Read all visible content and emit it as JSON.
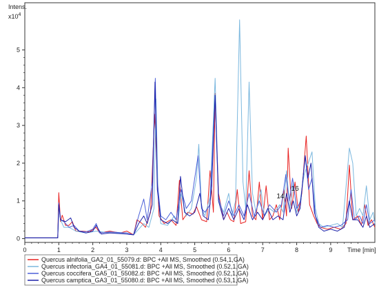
{
  "chart_data": {
    "type": "line",
    "ylabel": "Intens.",
    "y_multiplier": "x10",
    "y_multiplier_exp": "4",
    "xlabel": "Time [min]",
    "xlim": [
      0,
      10.3
    ],
    "ylim": [
      -0.1,
      6.25
    ],
    "x_ticks": [
      0,
      1,
      2,
      3,
      4,
      5,
      6,
      7,
      8,
      9
    ],
    "y_ticks": [
      0,
      1,
      2,
      3,
      4,
      5
    ],
    "grid": false,
    "legend_position": "bottom",
    "annotations": [
      {
        "text": "14",
        "x": 7.52,
        "y": 1.07
      },
      {
        "text": "16",
        "x": 7.95,
        "y": 1.27
      }
    ],
    "series": [
      {
        "name": "Quercus alnifolia_GA2_01_55079.d: BPC +All MS, Smoothed (0.54,1,GA)",
        "color": "#e8201f",
        "points": [
          [
            0,
            0.02
          ],
          [
            0.97,
            0.02
          ],
          [
            1.0,
            1.22
          ],
          [
            1.05,
            0.45
          ],
          [
            1.1,
            0.62
          ],
          [
            1.2,
            0.35
          ],
          [
            1.3,
            0.35
          ],
          [
            1.4,
            0.45
          ],
          [
            1.5,
            0.2
          ],
          [
            1.7,
            0.2
          ],
          [
            1.9,
            0.18
          ],
          [
            2.1,
            0.3
          ],
          [
            2.2,
            0.15
          ],
          [
            2.5,
            0.2
          ],
          [
            2.8,
            0.15
          ],
          [
            3.0,
            0.2
          ],
          [
            3.2,
            0.1
          ],
          [
            3.3,
            0.5
          ],
          [
            3.45,
            0.4
          ],
          [
            3.55,
            0.3
          ],
          [
            3.7,
            0.7
          ],
          [
            3.82,
            3.3
          ],
          [
            3.88,
            2.1
          ],
          [
            3.95,
            0.6
          ],
          [
            4.1,
            0.4
          ],
          [
            4.3,
            0.5
          ],
          [
            4.45,
            0.35
          ],
          [
            4.55,
            1.55
          ],
          [
            4.65,
            0.5
          ],
          [
            4.8,
            0.7
          ],
          [
            4.95,
            0.65
          ],
          [
            5.05,
            0.85
          ],
          [
            5.2,
            0.5
          ],
          [
            5.35,
            0.45
          ],
          [
            5.45,
            1.8
          ],
          [
            5.55,
            0.7
          ],
          [
            5.6,
            3.85
          ],
          [
            5.7,
            1.2
          ],
          [
            5.85,
            0.5
          ],
          [
            5.95,
            0.7
          ],
          [
            6.05,
            0.5
          ],
          [
            6.15,
            0.45
          ],
          [
            6.25,
            1.3
          ],
          [
            6.35,
            0.4
          ],
          [
            6.5,
            0.45
          ],
          [
            6.6,
            1.8
          ],
          [
            6.7,
            0.6
          ],
          [
            6.8,
            0.5
          ],
          [
            6.9,
            1.5
          ],
          [
            7.0,
            0.5
          ],
          [
            7.1,
            1.4
          ],
          [
            7.2,
            0.5
          ],
          [
            7.3,
            0.6
          ],
          [
            7.4,
            0.9
          ],
          [
            7.5,
            0.5
          ],
          [
            7.62,
            1.3
          ],
          [
            7.7,
            0.6
          ],
          [
            7.75,
            2.4
          ],
          [
            7.85,
            0.8
          ],
          [
            7.95,
            1.5
          ],
          [
            8.05,
            0.7
          ],
          [
            8.15,
            1.2
          ],
          [
            8.28,
            2.72
          ],
          [
            8.38,
            0.9
          ],
          [
            8.5,
            0.6
          ],
          [
            8.6,
            0.4
          ],
          [
            8.7,
            0.3
          ],
          [
            8.9,
            0.25
          ],
          [
            9.1,
            0.3
          ],
          [
            9.3,
            0.25
          ],
          [
            9.45,
            0.4
          ],
          [
            9.55,
            1.95
          ],
          [
            9.65,
            0.5
          ],
          [
            9.8,
            0.6
          ],
          [
            9.9,
            0.35
          ],
          [
            10.0,
            0.9
          ],
          [
            10.1,
            0.35
          ],
          [
            10.2,
            0.5
          ],
          [
            10.3,
            0.3
          ]
        ]
      },
      {
        "name": "Quercus infectoria_GA4_01_55081.d: BPC +All MS, Smoothed (0.52,1,GA)",
        "color": "#7ab7de",
        "points": [
          [
            0,
            0.02
          ],
          [
            0.97,
            0.02
          ],
          [
            1.0,
            0.85
          ],
          [
            1.05,
            0.5
          ],
          [
            1.15,
            0.3
          ],
          [
            1.3,
            0.3
          ],
          [
            1.5,
            0.2
          ],
          [
            1.8,
            0.15
          ],
          [
            2.1,
            0.2
          ],
          [
            2.5,
            0.15
          ],
          [
            3.0,
            0.15
          ],
          [
            3.2,
            0.1
          ],
          [
            3.35,
            0.25
          ],
          [
            3.5,
            0.4
          ],
          [
            3.65,
            0.3
          ],
          [
            3.8,
            0.8
          ],
          [
            3.86,
            3.7
          ],
          [
            3.92,
            1.2
          ],
          [
            4.0,
            0.4
          ],
          [
            4.2,
            0.35
          ],
          [
            4.4,
            0.6
          ],
          [
            4.5,
            0.4
          ],
          [
            4.6,
            1.2
          ],
          [
            4.75,
            0.6
          ],
          [
            4.9,
            0.8
          ],
          [
            5.05,
            1.6
          ],
          [
            5.12,
            2.5
          ],
          [
            5.2,
            0.8
          ],
          [
            5.3,
            0.6
          ],
          [
            5.45,
            1.1
          ],
          [
            5.6,
            4.25
          ],
          [
            5.7,
            1.0
          ],
          [
            5.85,
            0.7
          ],
          [
            6.0,
            1.2
          ],
          [
            6.1,
            0.6
          ],
          [
            6.2,
            1.0
          ],
          [
            6.32,
            5.8
          ],
          [
            6.42,
            1.5
          ],
          [
            6.5,
            0.8
          ],
          [
            6.6,
            4.15
          ],
          [
            6.7,
            1.2
          ],
          [
            6.8,
            0.7
          ],
          [
            6.95,
            1.3
          ],
          [
            7.05,
            0.6
          ],
          [
            7.2,
            0.8
          ],
          [
            7.35,
            0.7
          ],
          [
            7.5,
            0.9
          ],
          [
            7.6,
            0.7
          ],
          [
            7.7,
            1.8
          ],
          [
            7.8,
            0.8
          ],
          [
            7.9,
            1.5
          ],
          [
            8.0,
            0.7
          ],
          [
            8.1,
            1.0
          ],
          [
            8.22,
            1.7
          ],
          [
            8.3,
            1.9
          ],
          [
            8.45,
            2.3
          ],
          [
            8.55,
            0.8
          ],
          [
            8.65,
            0.4
          ],
          [
            8.8,
            0.3
          ],
          [
            9.0,
            0.35
          ],
          [
            9.2,
            0.4
          ],
          [
            9.35,
            0.3
          ],
          [
            9.55,
            2.4
          ],
          [
            9.65,
            2.0
          ],
          [
            9.75,
            0.6
          ],
          [
            9.85,
            0.8
          ],
          [
            9.95,
            0.6
          ],
          [
            10.05,
            1.4
          ],
          [
            10.15,
            0.5
          ],
          [
            10.25,
            0.7
          ],
          [
            10.3,
            0.4
          ]
        ]
      },
      {
        "name": "Quercus coccifera_GA5_01_55082.d: BPC +All MS, Smoothed (0.52,1,GA)",
        "color": "#4a5fd8",
        "points": [
          [
            0,
            0.02
          ],
          [
            0.97,
            0.02
          ],
          [
            1.0,
            0.95
          ],
          [
            1.05,
            0.5
          ],
          [
            1.15,
            0.45
          ],
          [
            1.3,
            0.3
          ],
          [
            1.45,
            0.35
          ],
          [
            1.6,
            0.2
          ],
          [
            1.8,
            0.18
          ],
          [
            2.0,
            0.25
          ],
          [
            2.1,
            0.4
          ],
          [
            2.2,
            0.15
          ],
          [
            2.5,
            0.18
          ],
          [
            3.0,
            0.15
          ],
          [
            3.2,
            0.1
          ],
          [
            3.35,
            0.6
          ],
          [
            3.5,
            1.05
          ],
          [
            3.6,
            0.5
          ],
          [
            3.75,
            1.5
          ],
          [
            3.84,
            4.25
          ],
          [
            3.9,
            1.5
          ],
          [
            4.0,
            0.6
          ],
          [
            4.15,
            0.5
          ],
          [
            4.3,
            0.7
          ],
          [
            4.45,
            0.5
          ],
          [
            4.6,
            1.3
          ],
          [
            4.75,
            0.8
          ],
          [
            4.9,
            1.0
          ],
          [
            5.1,
            2.2
          ],
          [
            5.2,
            0.8
          ],
          [
            5.3,
            0.7
          ],
          [
            5.45,
            0.9
          ],
          [
            5.6,
            3.8
          ],
          [
            5.7,
            1.1
          ],
          [
            5.85,
            0.6
          ],
          [
            6.0,
            1.0
          ],
          [
            6.15,
            0.6
          ],
          [
            6.3,
            0.9
          ],
          [
            6.45,
            0.6
          ],
          [
            6.6,
            1.2
          ],
          [
            6.75,
            0.6
          ],
          [
            6.9,
            1.0
          ],
          [
            7.05,
            0.6
          ],
          [
            7.2,
            0.9
          ],
          [
            7.4,
            0.7
          ],
          [
            7.55,
            0.9
          ],
          [
            7.68,
            1.7
          ],
          [
            7.78,
            1.0
          ],
          [
            7.88,
            1.6
          ],
          [
            8.0,
            0.8
          ],
          [
            8.12,
            1.0
          ],
          [
            8.25,
            2.2
          ],
          [
            8.35,
            1.3
          ],
          [
            8.45,
            1.6
          ],
          [
            8.55,
            0.6
          ],
          [
            8.7,
            0.3
          ],
          [
            8.9,
            0.35
          ],
          [
            9.1,
            0.3
          ],
          [
            9.3,
            0.35
          ],
          [
            9.5,
            0.5
          ],
          [
            9.6,
            1.3
          ],
          [
            9.7,
            0.5
          ],
          [
            9.85,
            0.6
          ],
          [
            9.95,
            0.4
          ],
          [
            10.05,
            0.9
          ],
          [
            10.15,
            0.4
          ],
          [
            10.3,
            0.5
          ]
        ]
      },
      {
        "name": "Quercus camptica_GA3_01_55080.d: BPC +All MS, Smoothed (0.53,1,GA)",
        "color": "#1a1fa8",
        "points": [
          [
            0,
            0.02
          ],
          [
            0.97,
            0.02
          ],
          [
            1.0,
            0.9
          ],
          [
            1.05,
            0.5
          ],
          [
            1.2,
            0.45
          ],
          [
            1.35,
            0.55
          ],
          [
            1.45,
            0.3
          ],
          [
            1.6,
            0.2
          ],
          [
            1.8,
            0.15
          ],
          [
            2.0,
            0.2
          ],
          [
            2.1,
            0.35
          ],
          [
            2.25,
            0.12
          ],
          [
            2.5,
            0.15
          ],
          [
            3.0,
            0.12
          ],
          [
            3.2,
            0.1
          ],
          [
            3.35,
            0.4
          ],
          [
            3.5,
            0.6
          ],
          [
            3.6,
            0.4
          ],
          [
            3.75,
            0.9
          ],
          [
            3.83,
            4.15
          ],
          [
            3.9,
            1.3
          ],
          [
            4.0,
            0.5
          ],
          [
            4.2,
            0.4
          ],
          [
            4.35,
            0.5
          ],
          [
            4.5,
            0.4
          ],
          [
            4.58,
            1.65
          ],
          [
            4.7,
            0.7
          ],
          [
            4.85,
            0.6
          ],
          [
            5.0,
            0.7
          ],
          [
            5.15,
            1.2
          ],
          [
            5.25,
            0.6
          ],
          [
            5.4,
            0.5
          ],
          [
            5.5,
            1.4
          ],
          [
            5.6,
            3.8
          ],
          [
            5.7,
            1.0
          ],
          [
            5.85,
            0.5
          ],
          [
            6.0,
            0.8
          ],
          [
            6.15,
            0.5
          ],
          [
            6.3,
            0.8
          ],
          [
            6.45,
            0.5
          ],
          [
            6.55,
            0.9
          ],
          [
            6.7,
            0.5
          ],
          [
            6.85,
            0.7
          ],
          [
            7.0,
            0.5
          ],
          [
            7.15,
            0.8
          ],
          [
            7.3,
            0.5
          ],
          [
            7.45,
            0.6
          ],
          [
            7.6,
            0.5
          ],
          [
            7.7,
            1.2
          ],
          [
            7.8,
            0.7
          ],
          [
            7.9,
            1.0
          ],
          [
            8.0,
            0.6
          ],
          [
            8.1,
            0.8
          ],
          [
            8.25,
            2.2
          ],
          [
            8.33,
            1.6
          ],
          [
            8.42,
            2.0
          ],
          [
            8.52,
            0.7
          ],
          [
            8.65,
            0.3
          ],
          [
            8.8,
            0.2
          ],
          [
            9.0,
            0.25
          ],
          [
            9.2,
            0.2
          ],
          [
            9.4,
            0.3
          ],
          [
            9.55,
            1.0
          ],
          [
            9.65,
            0.5
          ],
          [
            9.8,
            0.5
          ],
          [
            9.95,
            0.3
          ],
          [
            10.05,
            0.6
          ],
          [
            10.15,
            0.3
          ],
          [
            10.3,
            0.4
          ]
        ]
      }
    ]
  }
}
